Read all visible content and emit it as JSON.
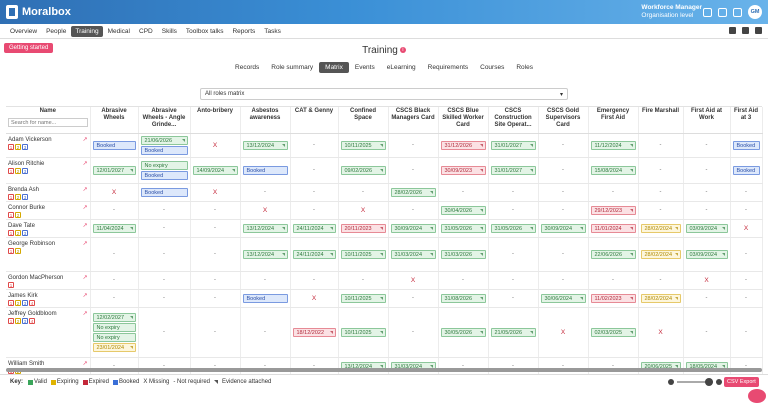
{
  "app": {
    "logo_text": "Moralbox",
    "user_role": "Workforce Manager",
    "user_level": "Organisation level",
    "avatar_initials": "GM"
  },
  "nav": {
    "items": [
      "Overview",
      "People",
      "Training",
      "Medical",
      "CPD",
      "Skills",
      "Toolbox talks",
      "Reports",
      "Tasks"
    ],
    "active": "Training"
  },
  "getting_started_label": "Getting started",
  "page_title": "Training",
  "subtabs": [
    "Records",
    "Role summary",
    "Matrix",
    "Events",
    "eLearning",
    "Requirements",
    "Courses",
    "Roles"
  ],
  "active_subtab": "Matrix",
  "roles_select_value": "All roles matrix",
  "matrix": {
    "name_header": "Name",
    "search_placeholder": "Search for name...",
    "columns": [
      "Abrasive Wheels",
      "Abrasive Wheels - Angle Grinde...",
      "Anto-bribery",
      "Asbestos awareness",
      "CAT & Genny",
      "Confined Space",
      "CSCS Black Managers Card",
      "CSCS Blue Skilled Worker Card",
      "CSCS Construction Site Operat...",
      "CSCS Gold Supervisors Card",
      "Emergency First Aid",
      "Fire Marshall",
      "First Aid at Work",
      "First Aid at 3"
    ],
    "rows": [
      {
        "name": "Adam Vickerson",
        "badges": [
          "1",
          "2",
          "3"
        ],
        "cells": [
          [
            {
              "s": "booked",
              "t": "Booked"
            }
          ],
          [
            {
              "s": "valid",
              "t": "21/06/2026"
            },
            {
              "s": "booked",
              "t": "Booked"
            }
          ],
          [
            {
              "s": "missing",
              "t": "X"
            }
          ],
          [
            {
              "s": "valid",
              "t": "13/12/2024"
            }
          ],
          [
            {
              "s": "none",
              "t": "-"
            }
          ],
          [
            {
              "s": "valid",
              "t": "10/11/2025"
            }
          ],
          [
            {
              "s": "none",
              "t": "-"
            }
          ],
          [
            {
              "s": "expired",
              "t": "31/12/2026"
            }
          ],
          [
            {
              "s": "valid",
              "t": "31/01/2027"
            }
          ],
          [
            {
              "s": "none",
              "t": "-"
            }
          ],
          [
            {
              "s": "valid",
              "t": "11/12/2024"
            }
          ],
          [
            {
              "s": "none",
              "t": "-"
            }
          ],
          [
            {
              "s": "none",
              "t": "-"
            }
          ],
          [
            {
              "s": "booked",
              "t": "Booked"
            }
          ]
        ]
      },
      {
        "name": "Alison Ritchie",
        "badges": [
          "1",
          "2",
          "3"
        ],
        "cells": [
          [
            {
              "s": "valid",
              "t": "12/01/2027"
            }
          ],
          [
            {
              "s": "noexp",
              "t": "No expiry"
            },
            {
              "s": "booked",
              "t": "Booked"
            }
          ],
          [
            {
              "s": "valid",
              "t": "14/09/2024"
            }
          ],
          [
            {
              "s": "booked",
              "t": "Booked"
            }
          ],
          [
            {
              "s": "none",
              "t": "-"
            }
          ],
          [
            {
              "s": "valid",
              "t": "09/02/2026"
            }
          ],
          [
            {
              "s": "none",
              "t": "-"
            }
          ],
          [
            {
              "s": "expired",
              "t": "30/09/2023"
            }
          ],
          [
            {
              "s": "valid",
              "t": "31/01/2027"
            }
          ],
          [
            {
              "s": "none",
              "t": "-"
            }
          ],
          [
            {
              "s": "valid",
              "t": "15/08/2024"
            }
          ],
          [
            {
              "s": "none",
              "t": "-"
            }
          ],
          [
            {
              "s": "none",
              "t": "-"
            }
          ],
          [
            {
              "s": "booked",
              "t": "Booked"
            }
          ]
        ]
      },
      {
        "name": "Brenda Ash",
        "badges": [
          "1",
          "2",
          "3"
        ],
        "cells": [
          [
            {
              "s": "missing",
              "t": "X"
            }
          ],
          [
            {
              "s": "booked",
              "t": "Booked"
            }
          ],
          [
            {
              "s": "missing",
              "t": "X"
            }
          ],
          [
            {
              "s": "none",
              "t": "-"
            }
          ],
          [
            {
              "s": "none",
              "t": "-"
            }
          ],
          [
            {
              "s": "none",
              "t": "-"
            }
          ],
          [
            {
              "s": "valid",
              "t": "28/02/2026"
            }
          ],
          [
            {
              "s": "none",
              "t": "-"
            }
          ],
          [
            {
              "s": "none",
              "t": "-"
            }
          ],
          [
            {
              "s": "none",
              "t": "-"
            }
          ],
          [
            {
              "s": "none",
              "t": "-"
            }
          ],
          [
            {
              "s": "none",
              "t": "-"
            }
          ],
          [
            {
              "s": "none",
              "t": "-"
            }
          ],
          [
            {
              "s": "none",
              "t": "-"
            }
          ]
        ]
      },
      {
        "name": "Connor Burke",
        "badges": [
          "1",
          "2"
        ],
        "cells": [
          [
            {
              "s": "none",
              "t": "-"
            }
          ],
          [
            {
              "s": "none",
              "t": "-"
            }
          ],
          [
            {
              "s": "none",
              "t": "-"
            }
          ],
          [
            {
              "s": "missing",
              "t": "X"
            }
          ],
          [
            {
              "s": "none",
              "t": "-"
            }
          ],
          [
            {
              "s": "missing",
              "t": "X"
            }
          ],
          [
            {
              "s": "none",
              "t": "-"
            }
          ],
          [
            {
              "s": "valid",
              "t": "30/04/2026"
            }
          ],
          [
            {
              "s": "none",
              "t": "-"
            }
          ],
          [
            {
              "s": "none",
              "t": "-"
            }
          ],
          [
            {
              "s": "expired",
              "t": "29/12/2023"
            }
          ],
          [
            {
              "s": "none",
              "t": "-"
            }
          ],
          [
            {
              "s": "none",
              "t": "-"
            }
          ],
          [
            {
              "s": "none",
              "t": "-"
            }
          ]
        ]
      },
      {
        "name": "Dave Tate",
        "badges": [
          "1",
          "2",
          "3"
        ],
        "cells": [
          [
            {
              "s": "valid",
              "t": "11/04/2024"
            }
          ],
          [
            {
              "s": "none",
              "t": "-"
            }
          ],
          [
            {
              "s": "none",
              "t": "-"
            }
          ],
          [
            {
              "s": "valid",
              "t": "13/12/2024"
            }
          ],
          [
            {
              "s": "valid",
              "t": "24/11/2024"
            }
          ],
          [
            {
              "s": "expired",
              "t": "20/11/2023"
            }
          ],
          [
            {
              "s": "valid",
              "t": "30/09/2024"
            }
          ],
          [
            {
              "s": "valid",
              "t": "31/05/2026"
            }
          ],
          [
            {
              "s": "valid",
              "t": "31/05/2026"
            }
          ],
          [
            {
              "s": "valid",
              "t": "30/09/2024"
            }
          ],
          [
            {
              "s": "expired",
              "t": "11/01/2024"
            }
          ],
          [
            {
              "s": "expiring",
              "t": "28/02/2024"
            }
          ],
          [
            {
              "s": "valid",
              "t": "03/09/2024"
            }
          ],
          [
            {
              "s": "missing",
              "t": "X"
            }
          ]
        ]
      },
      {
        "name": "George Robinson",
        "badges": [
          "1",
          "2"
        ],
        "cells": [
          [
            {
              "s": "none",
              "t": "-"
            }
          ],
          [
            {
              "s": "none",
              "t": "-"
            }
          ],
          [
            {
              "s": "none",
              "t": "-"
            }
          ],
          [
            {
              "s": "valid",
              "t": "13/12/2024"
            }
          ],
          [
            {
              "s": "valid",
              "t": "24/11/2024"
            }
          ],
          [
            {
              "s": "valid",
              "t": "10/11/2025"
            }
          ],
          [
            {
              "s": "valid",
              "t": "31/03/2024"
            }
          ],
          [
            {
              "s": "valid",
              "t": "31/03/2026"
            }
          ],
          [
            {
              "s": "none",
              "t": "-"
            }
          ],
          [
            {
              "s": "none",
              "t": "-"
            }
          ],
          [
            {
              "s": "valid",
              "t": "22/06/2026"
            }
          ],
          [
            {
              "s": "expiring",
              "t": "28/02/2024"
            }
          ],
          [
            {
              "s": "valid",
              "t": "03/09/2024"
            }
          ],
          [
            {
              "s": "none",
              "t": "-"
            }
          ]
        ]
      },
      {
        "name": "Gordon MacPherson",
        "badges": [
          "1"
        ],
        "cells": [
          [
            {
              "s": "none",
              "t": "-"
            }
          ],
          [
            {
              "s": "none",
              "t": "-"
            }
          ],
          [
            {
              "s": "none",
              "t": "-"
            }
          ],
          [
            {
              "s": "none",
              "t": "-"
            }
          ],
          [
            {
              "s": "none",
              "t": "-"
            }
          ],
          [
            {
              "s": "none",
              "t": "-"
            }
          ],
          [
            {
              "s": "missing",
              "t": "X"
            }
          ],
          [
            {
              "s": "none",
              "t": "-"
            }
          ],
          [
            {
              "s": "none",
              "t": "-"
            }
          ],
          [
            {
              "s": "none",
              "t": "-"
            }
          ],
          [
            {
              "s": "none",
              "t": "-"
            }
          ],
          [
            {
              "s": "none",
              "t": "-"
            }
          ],
          [
            {
              "s": "missing",
              "t": "X"
            }
          ],
          [
            {
              "s": "none",
              "t": "-"
            }
          ]
        ]
      },
      {
        "name": "James Kirk",
        "badges": [
          "1",
          "2",
          "3",
          "4"
        ],
        "cells": [
          [
            {
              "s": "none",
              "t": "-"
            }
          ],
          [
            {
              "s": "none",
              "t": "-"
            }
          ],
          [
            {
              "s": "none",
              "t": "-"
            }
          ],
          [
            {
              "s": "booked",
              "t": "Booked"
            }
          ],
          [
            {
              "s": "missing",
              "t": "X"
            }
          ],
          [
            {
              "s": "valid",
              "t": "10/11/2025"
            }
          ],
          [
            {
              "s": "none",
              "t": "-"
            }
          ],
          [
            {
              "s": "valid",
              "t": "31/08/2026"
            }
          ],
          [
            {
              "s": "none",
              "t": "-"
            }
          ],
          [
            {
              "s": "valid",
              "t": "30/06/2024"
            }
          ],
          [
            {
              "s": "expired",
              "t": "11/02/2023"
            }
          ],
          [
            {
              "s": "expiring",
              "t": "28/02/2024"
            }
          ],
          [
            {
              "s": "none",
              "t": "-"
            }
          ],
          [
            {
              "s": "none",
              "t": "-"
            }
          ]
        ]
      },
      {
        "name": "Jeffrey Goldbloom",
        "badges": [
          "1",
          "2",
          "3",
          "4"
        ],
        "cells": [
          [
            {
              "s": "valid",
              "t": "12/02/2027"
            },
            {
              "s": "noexp",
              "t": "No expiry"
            },
            {
              "s": "noexp",
              "t": "No expiry"
            },
            {
              "s": "expiring",
              "t": "23/01/2024"
            }
          ],
          [
            {
              "s": "none",
              "t": "-"
            }
          ],
          [
            {
              "s": "none",
              "t": "-"
            }
          ],
          [
            {
              "s": "none",
              "t": "-"
            }
          ],
          [
            {
              "s": "expired",
              "t": "18/12/2022"
            }
          ],
          [
            {
              "s": "valid",
              "t": "10/11/2025"
            }
          ],
          [
            {
              "s": "none",
              "t": "-"
            }
          ],
          [
            {
              "s": "valid",
              "t": "30/05/2026"
            }
          ],
          [
            {
              "s": "valid",
              "t": "21/05/2026"
            }
          ],
          [
            {
              "s": "missing",
              "t": "X"
            }
          ],
          [
            {
              "s": "valid",
              "t": "02/03/2025"
            }
          ],
          [
            {
              "s": "missing",
              "t": "X"
            }
          ],
          [
            {
              "s": "none",
              "t": "-"
            }
          ],
          [
            {
              "s": "none",
              "t": "-"
            }
          ]
        ]
      },
      {
        "name": "William Smith",
        "badges": [
          "1",
          "2"
        ],
        "cells": [
          [
            {
              "s": "none",
              "t": "-"
            }
          ],
          [
            {
              "s": "none",
              "t": "-"
            }
          ],
          [
            {
              "s": "none",
              "t": "-"
            }
          ],
          [
            {
              "s": "none",
              "t": "-"
            }
          ],
          [
            {
              "s": "none",
              "t": "-"
            }
          ],
          [
            {
              "s": "valid",
              "t": "13/12/2024"
            }
          ],
          [
            {
              "s": "valid",
              "t": "31/03/2024"
            }
          ],
          [
            {
              "s": "none",
              "t": "-"
            }
          ],
          [
            {
              "s": "none",
              "t": "-"
            }
          ],
          [
            {
              "s": "none",
              "t": "-"
            }
          ],
          [
            {
              "s": "none",
              "t": "-"
            }
          ],
          [
            {
              "s": "valid",
              "t": "20/06/2025"
            }
          ],
          [
            {
              "s": "valid",
              "t": "18/05/2024"
            }
          ],
          [
            {
              "s": "none",
              "t": "-"
            }
          ]
        ]
      }
    ]
  },
  "key": {
    "label": "Key:",
    "items": [
      {
        "label": "Valid",
        "color": "#3aa55a"
      },
      {
        "label": "Expiring",
        "color": "#e0b400"
      },
      {
        "label": "Expired",
        "color": "#c4283a"
      },
      {
        "label": "Booked",
        "color": "#3a6fd8"
      }
    ],
    "missing_label": "X Missing",
    "not_required_label": "- Not required",
    "evidence_label": "Evidence attached"
  },
  "csv_export_label": "CSV Export"
}
